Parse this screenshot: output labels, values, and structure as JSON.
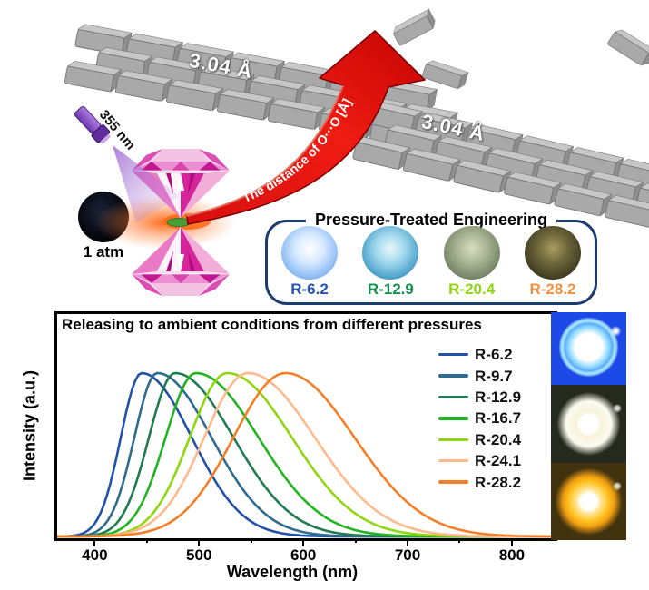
{
  "scene": {
    "walls": {
      "left_label": "3.04 Å",
      "right_label": "3.04 Å"
    },
    "arrow_label": "The distance of O···O [Å]",
    "laser_label": "355 nm",
    "pressure_label": "1 atm",
    "treatment_box": {
      "title": "Pressure-Treated Engineering",
      "border_color": "#1c3c6e",
      "samples": [
        {
          "label": "R-6.2",
          "label_color": "#2453b4",
          "sphere_colors": [
            "#ffffff",
            "#d6e9ff",
            "#8cbbf5",
            "#4f88e0"
          ]
        },
        {
          "label": "R-12.9",
          "label_color": "#13914c",
          "sphere_colors": [
            "#e8f6fa",
            "#9fd8ec",
            "#4fa3cc",
            "#1d6fa6"
          ]
        },
        {
          "label": "R-20.4",
          "label_color": "#8ed411",
          "sphere_colors": [
            "#d8dcc2",
            "#aab694",
            "#78866a",
            "#525f44"
          ]
        },
        {
          "label": "R-28.2",
          "label_color": "#f78f40",
          "sphere_colors": [
            "#a89d60",
            "#6f683c",
            "#433f24",
            "#23210f"
          ]
        }
      ]
    }
  },
  "chart_data": {
    "type": "line",
    "title": "Releasing to ambient conditions from different pressures",
    "xlabel": "Wavelength (nm)",
    "ylabel": "Intensity (a.u.)",
    "x_axis_range": [
      364,
      841
    ],
    "x_ticks": [
      400,
      500,
      600,
      700,
      800
    ],
    "x_minor_ticks": [
      450,
      550,
      650,
      750
    ],
    "y_ticks": [],
    "grid": false,
    "legend_position": "inside-right",
    "curve_model": "split-gaussian",
    "series": [
      {
        "name": "R-6.2",
        "color": "#2152a8",
        "peak_nm": 445,
        "sigma_left_nm": 20,
        "sigma_right_nm": 48,
        "peak_intensity": 1.0
      },
      {
        "name": "R-9.7",
        "color": "#2e6b8f",
        "peak_nm": 460,
        "sigma_left_nm": 22,
        "sigma_right_nm": 52,
        "peak_intensity": 1.0
      },
      {
        "name": "R-12.9",
        "color": "#207a52",
        "peak_nm": 477,
        "sigma_left_nm": 25,
        "sigma_right_nm": 56,
        "peak_intensity": 1.0
      },
      {
        "name": "R-16.7",
        "color": "#22b322",
        "peak_nm": 497,
        "sigma_left_nm": 29,
        "sigma_right_nm": 60,
        "peak_intensity": 1.0
      },
      {
        "name": "R-20.4",
        "color": "#8fd60f",
        "peak_nm": 527,
        "sigma_left_nm": 36,
        "sigma_right_nm": 62,
        "peak_intensity": 1.0
      },
      {
        "name": "R-24.1",
        "color": "#ffb98c",
        "peak_nm": 547,
        "sigma_left_nm": 42,
        "sigma_right_nm": 64,
        "peak_intensity": 1.0
      },
      {
        "name": "R-28.2",
        "color": "#f57f28",
        "peak_nm": 583,
        "sigma_left_nm": 50,
        "sigma_right_nm": 66,
        "peak_intensity": 1.0
      }
    ]
  },
  "led_photos": [
    {
      "name": "blue-led-photo",
      "background": "#1d49e6",
      "emission": "#7fd4ff"
    },
    {
      "name": "white-led-photo",
      "background": "#262a1e",
      "emission": "#f6f2da"
    },
    {
      "name": "yellow-led-photo",
      "background": "#42330f",
      "emission": "#ffc21e"
    }
  ]
}
